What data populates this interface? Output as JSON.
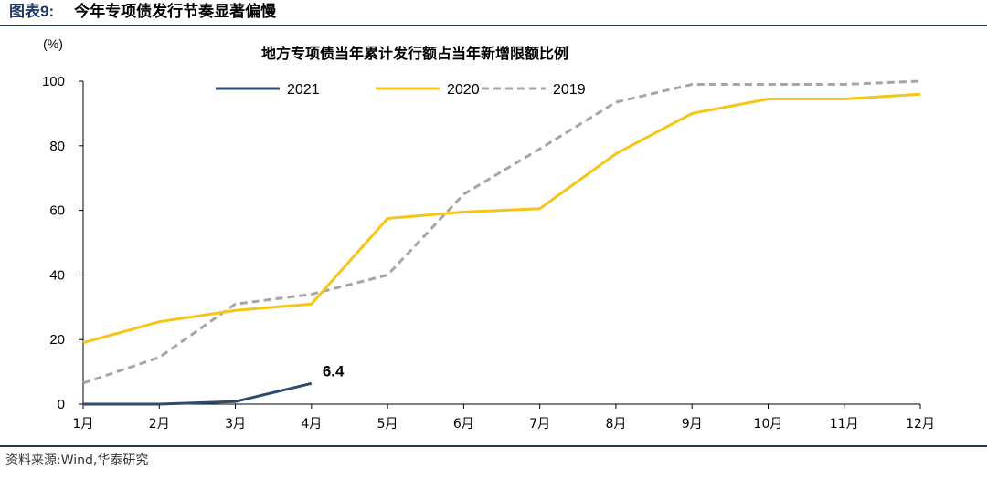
{
  "figure": {
    "label": "图表9:",
    "title": "今年专项债发行节奏显著偏慢",
    "source": "资料来源:Wind,华泰研究"
  },
  "chart_data": {
    "type": "line",
    "title": "地方专项债当年累计发行额占当年新增限额比例",
    "y_unit_label": "(%)",
    "ylim": [
      0,
      100
    ],
    "yticks": [
      0,
      20,
      40,
      60,
      80,
      100
    ],
    "categories": [
      "1月",
      "2月",
      "3月",
      "4月",
      "5月",
      "6月",
      "7月",
      "8月",
      "9月",
      "10月",
      "11月",
      "12月"
    ],
    "legend_position": "top-center",
    "grid": false,
    "series": [
      {
        "name": "2021",
        "color": "#2e4a6f",
        "dash": "solid",
        "values": [
          0,
          0,
          0.8,
          6.4,
          null,
          null,
          null,
          null,
          null,
          null,
          null,
          null
        ]
      },
      {
        "name": "2020",
        "color": "#f5c518",
        "dash": "solid",
        "values": [
          19,
          25.5,
          29,
          31,
          57.5,
          59.5,
          60.5,
          77.5,
          90,
          94.5,
          94.5,
          96
        ]
      },
      {
        "name": "2019",
        "color": "#a6a6a6",
        "dash": "dashed",
        "values": [
          6.5,
          14.5,
          31,
          34,
          40,
          65,
          79,
          93.5,
          99,
          99,
          99,
          100
        ]
      }
    ],
    "annotations": [
      {
        "text": "6.4",
        "series": "2021",
        "category": "4月"
      }
    ]
  }
}
